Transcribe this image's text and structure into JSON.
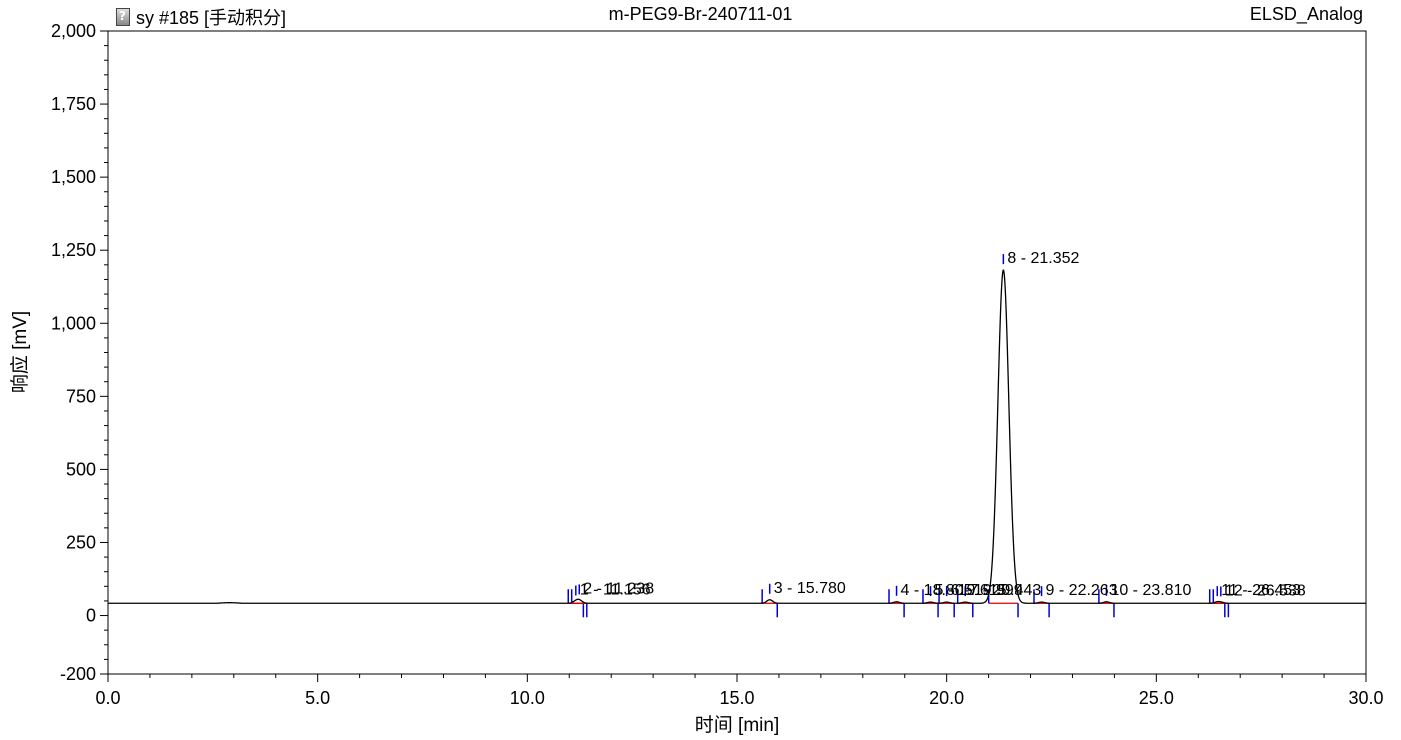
{
  "header": {
    "left_title": "sy #185 [手动积分]",
    "center_title": "m-PEG9-Br-240711-01",
    "right_title": "ELSD_Analog",
    "icon": "document-question-icon"
  },
  "chart_data": {
    "type": "line",
    "title": "m-PEG9-Br-240711-01",
    "xlabel": "时间 [min]",
    "ylabel": "响应 [mV]",
    "xlim": [
      0,
      30
    ],
    "ylim": [
      -200,
      2000
    ],
    "x_ticks": [
      "0.0",
      "5.0",
      "10.0",
      "15.0",
      "20.0",
      "25.0",
      "30.0"
    ],
    "y_ticks": [
      "-200",
      "0",
      "250",
      "500",
      "750",
      "1,000",
      "1,250",
      "1,500",
      "1,750",
      "2,000"
    ],
    "grid": false,
    "baseline": 42,
    "series": [
      {
        "peaks": [
          {
            "label": "1 - 11.156",
            "rt": 11.156,
            "height": 6
          },
          {
            "label": "2 - 11.238",
            "rt": 11.238,
            "height": 10
          },
          {
            "label": "3 - 15.780",
            "rt": 15.78,
            "height": 12
          },
          {
            "label": "4 - 18.805",
            "rt": 18.805,
            "height": 5
          },
          {
            "label": "5 - 19.615",
            "rt": 19.615,
            "height": 4
          },
          {
            "label": "6 - 19.999",
            "rt": 19.999,
            "height": 4
          },
          {
            "label": "7 - 20.443",
            "rt": 20.443,
            "height": 4
          },
          {
            "label": "8 - 21.352",
            "rt": 21.352,
            "height": 1140
          },
          {
            "label": "9 - 22.263",
            "rt": 22.263,
            "height": 4
          },
          {
            "label": "10 - 23.810",
            "rt": 23.81,
            "height": 5
          },
          {
            "label": "11 - 26.453",
            "rt": 26.453,
            "height": 4
          },
          {
            "label": "12 - 26.538",
            "rt": 26.538,
            "height": 3
          }
        ]
      }
    ]
  }
}
